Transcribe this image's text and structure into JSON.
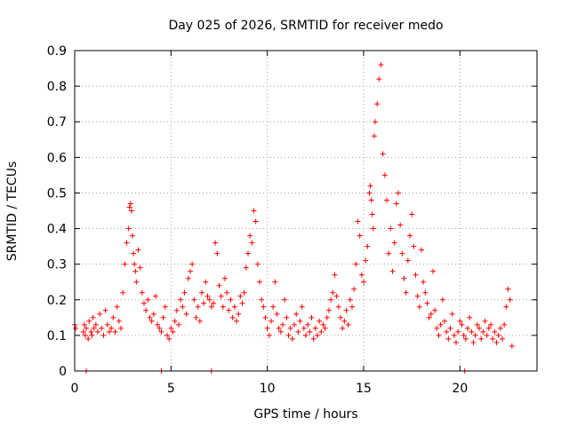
{
  "chart_data": {
    "type": "scatter",
    "title": "Day 025 of 2026, SRMTID for receiver medo",
    "xlabel": "GPS time / hours",
    "ylabel": "SRMTID / TECUs",
    "xlim": [
      0,
      24
    ],
    "ylim": [
      0,
      0.9
    ],
    "xticks": [
      0,
      5,
      10,
      15,
      20
    ],
    "xtick_labels": [
      "0",
      "5",
      "10",
      "15",
      "20"
    ],
    "yticks": [
      0,
      0.1,
      0.2,
      0.3,
      0.4,
      0.5,
      0.6,
      0.7,
      0.8,
      0.9
    ],
    "ytick_labels": [
      "0",
      "0.1",
      "0.2",
      "0.3",
      "0.4",
      "0.5",
      "0.6",
      "0.7",
      "0.8",
      "0.9"
    ],
    "grid": true,
    "marker": "plus",
    "color": "#ff0000",
    "series": [
      {
        "name": "SRMTID",
        "x": [
          0.0,
          0.05,
          0.45,
          0.5,
          0.55,
          0.6,
          0.7,
          0.75,
          0.85,
          0.9,
          0.95,
          1.0,
          1.1,
          1.2,
          1.3,
          1.4,
          1.5,
          1.6,
          1.7,
          1.8,
          1.9,
          2.0,
          2.1,
          2.2,
          2.3,
          2.4,
          2.5,
          2.6,
          2.7,
          2.8,
          2.85,
          2.9,
          2.95,
          3.0,
          3.05,
          3.1,
          3.15,
          3.2,
          3.3,
          3.4,
          3.5,
          3.6,
          3.7,
          3.8,
          3.9,
          4.0,
          4.1,
          4.2,
          4.3,
          4.4,
          4.5,
          4.6,
          4.7,
          4.8,
          4.9,
          5.0,
          5.1,
          5.2,
          5.3,
          5.4,
          5.5,
          5.6,
          5.7,
          5.8,
          5.9,
          6.0,
          6.1,
          6.2,
          6.3,
          6.4,
          6.5,
          6.6,
          6.7,
          6.8,
          6.9,
          7.0,
          7.1,
          7.2,
          7.3,
          7.4,
          7.5,
          7.6,
          7.7,
          7.8,
          7.9,
          8.0,
          8.1,
          8.2,
          8.3,
          8.4,
          8.5,
          8.6,
          8.7,
          8.8,
          8.9,
          9.0,
          9.1,
          9.2,
          9.3,
          9.4,
          9.5,
          9.6,
          9.7,
          9.8,
          9.9,
          10.0,
          10.1,
          10.2,
          10.3,
          10.4,
          10.5,
          10.6,
          10.7,
          10.8,
          10.9,
          11.0,
          11.1,
          11.2,
          11.3,
          11.4,
          11.5,
          11.6,
          11.7,
          11.8,
          11.9,
          12.0,
          12.1,
          12.2,
          12.3,
          12.4,
          12.5,
          12.6,
          12.7,
          12.8,
          12.9,
          13.0,
          13.1,
          13.2,
          13.3,
          13.4,
          13.5,
          13.6,
          13.7,
          13.8,
          13.9,
          14.0,
          14.1,
          14.2,
          14.3,
          14.4,
          14.5,
          14.6,
          14.7,
          14.8,
          14.9,
          15.0,
          15.1,
          15.2,
          15.3,
          15.35,
          15.4,
          15.45,
          15.5,
          15.55,
          15.6,
          15.7,
          15.8,
          15.9,
          16.0,
          16.1,
          16.2,
          16.3,
          16.4,
          16.5,
          16.6,
          16.7,
          16.8,
          16.9,
          17.0,
          17.1,
          17.2,
          17.3,
          17.4,
          17.5,
          17.6,
          17.7,
          17.8,
          17.9,
          18.0,
          18.1,
          18.2,
          18.3,
          18.4,
          18.5,
          18.6,
          18.7,
          18.8,
          18.9,
          19.0,
          19.1,
          19.2,
          19.3,
          19.4,
          19.5,
          19.6,
          19.7,
          19.8,
          19.9,
          20.0,
          20.1,
          20.2,
          20.3,
          20.4,
          20.5,
          20.6,
          20.7,
          20.8,
          20.9,
          21.0,
          21.1,
          21.2,
          21.3,
          21.4,
          21.5,
          21.6,
          21.7,
          21.8,
          21.9,
          22.0,
          22.1,
          22.2,
          22.3,
          22.4,
          22.5,
          22.6,
          22.7,
          0.6,
          4.5,
          7.1,
          20.25
        ],
        "y": [
          0.13,
          0.12,
          0.11,
          0.13,
          0.1,
          0.12,
          0.09,
          0.14,
          0.11,
          0.1,
          0.15,
          0.12,
          0.13,
          0.11,
          0.16,
          0.12,
          0.1,
          0.17,
          0.13,
          0.11,
          0.12,
          0.15,
          0.11,
          0.18,
          0.14,
          0.12,
          0.22,
          0.3,
          0.36,
          0.4,
          0.46,
          0.47,
          0.45,
          0.38,
          0.33,
          0.3,
          0.28,
          0.25,
          0.34,
          0.29,
          0.22,
          0.19,
          0.17,
          0.2,
          0.15,
          0.14,
          0.16,
          0.21,
          0.13,
          0.12,
          0.11,
          0.15,
          0.18,
          0.1,
          0.09,
          0.12,
          0.11,
          0.14,
          0.17,
          0.13,
          0.2,
          0.18,
          0.22,
          0.16,
          0.26,
          0.28,
          0.3,
          0.2,
          0.15,
          0.18,
          0.14,
          0.22,
          0.19,
          0.25,
          0.21,
          0.2,
          0.18,
          0.19,
          0.36,
          0.33,
          0.24,
          0.21,
          0.18,
          0.26,
          0.22,
          0.17,
          0.2,
          0.15,
          0.18,
          0.14,
          0.16,
          0.21,
          0.19,
          0.22,
          0.29,
          0.33,
          0.38,
          0.36,
          0.45,
          0.42,
          0.3,
          0.25,
          0.2,
          0.18,
          0.15,
          0.12,
          0.1,
          0.14,
          0.18,
          0.25,
          0.16,
          0.12,
          0.11,
          0.13,
          0.2,
          0.15,
          0.1,
          0.12,
          0.09,
          0.13,
          0.16,
          0.11,
          0.14,
          0.18,
          0.12,
          0.1,
          0.13,
          0.11,
          0.15,
          0.09,
          0.12,
          0.1,
          0.14,
          0.11,
          0.13,
          0.12,
          0.15,
          0.17,
          0.2,
          0.22,
          0.27,
          0.21,
          0.18,
          0.15,
          0.12,
          0.14,
          0.17,
          0.13,
          0.2,
          0.18,
          0.23,
          0.3,
          0.42,
          0.38,
          0.27,
          0.25,
          0.31,
          0.35,
          0.5,
          0.52,
          0.48,
          0.44,
          0.4,
          0.66,
          0.7,
          0.75,
          0.82,
          0.86,
          0.61,
          0.55,
          0.48,
          0.33,
          0.4,
          0.28,
          0.36,
          0.47,
          0.5,
          0.41,
          0.33,
          0.26,
          0.22,
          0.31,
          0.38,
          0.44,
          0.35,
          0.27,
          0.21,
          0.18,
          0.34,
          0.25,
          0.22,
          0.19,
          0.15,
          0.16,
          0.28,
          0.17,
          0.12,
          0.1,
          0.13,
          0.2,
          0.14,
          0.11,
          0.09,
          0.12,
          0.16,
          0.1,
          0.08,
          0.11,
          0.14,
          0.13,
          0.1,
          0.09,
          0.12,
          0.15,
          0.11,
          0.08,
          0.1,
          0.13,
          0.12,
          0.09,
          0.11,
          0.14,
          0.1,
          0.12,
          0.13,
          0.09,
          0.11,
          0.08,
          0.1,
          0.12,
          0.09,
          0.13,
          0.18,
          0.23,
          0.2,
          0.07,
          0.0,
          0.0,
          0.0,
          0.0
        ]
      }
    ]
  }
}
